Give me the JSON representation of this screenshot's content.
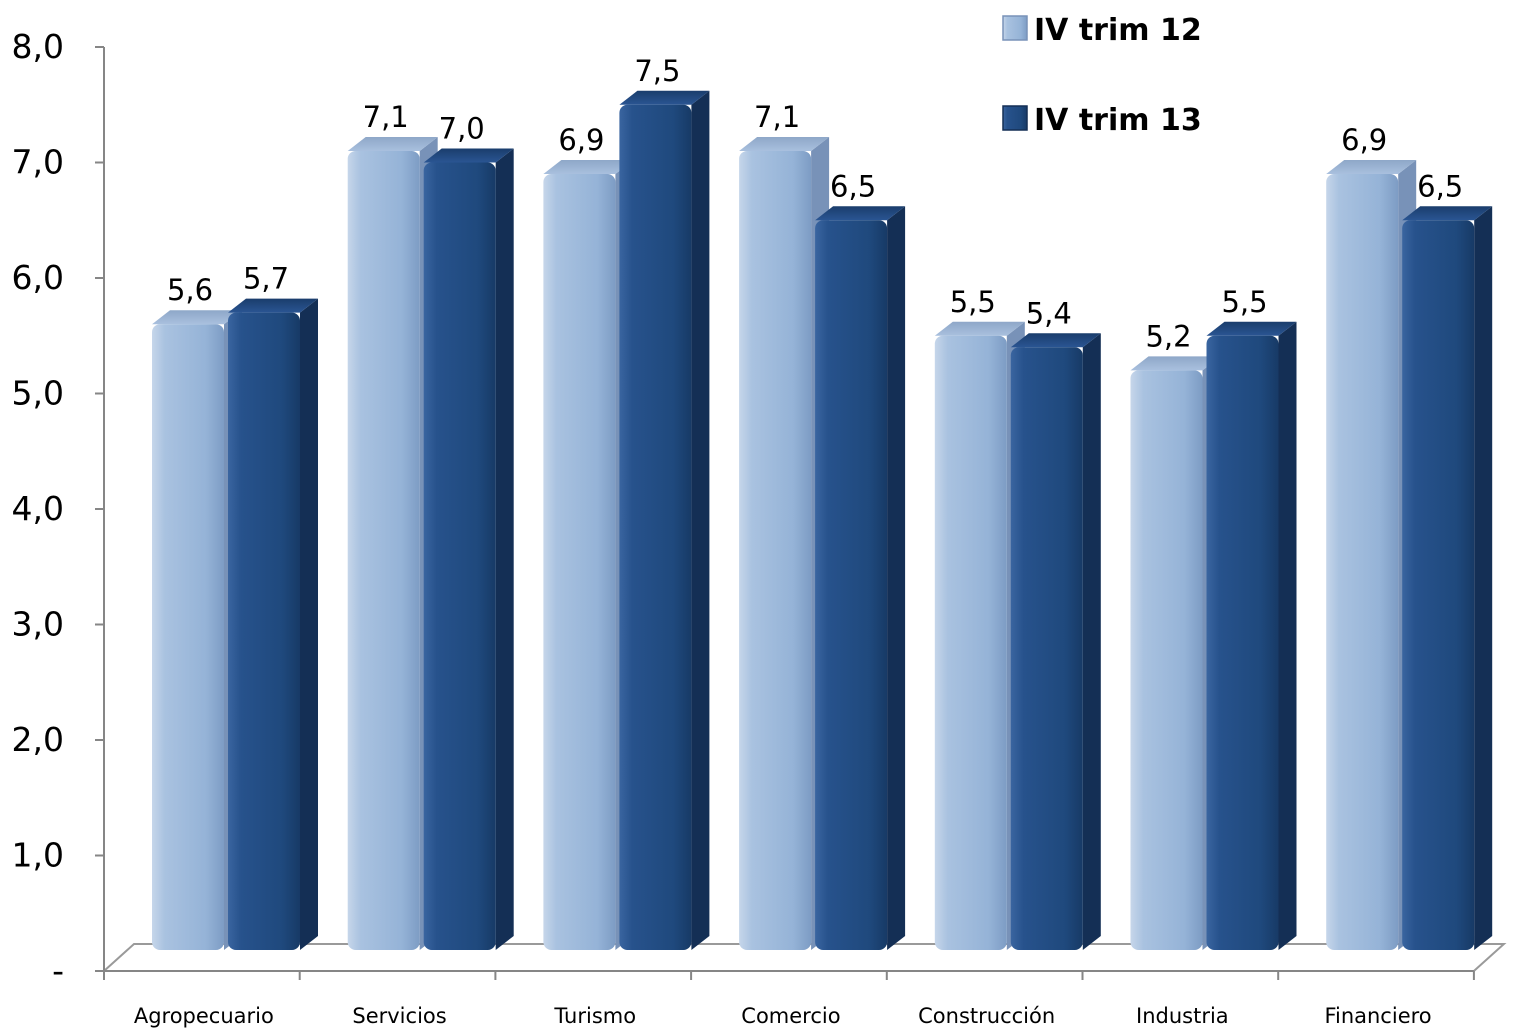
{
  "chart_data": {
    "type": "bar",
    "title": "",
    "xlabel": "",
    "ylabel": "",
    "ylim": [
      0,
      8
    ],
    "yticks": [
      "-",
      "1,0",
      "2,0",
      "3,0",
      "4,0",
      "5,0",
      "6,0",
      "7,0",
      "8,0"
    ],
    "categories": [
      "Agropecuario",
      "Servicios",
      "Turismo",
      "Comercio",
      "Construcción",
      "Industria",
      "Financiero"
    ],
    "series": [
      {
        "name": "IV trim 12",
        "values": [
          5.6,
          7.1,
          6.9,
          7.1,
          5.5,
          5.2,
          6.9
        ],
        "labels": [
          "5,6",
          "7,1",
          "6,9",
          "7,1",
          "5,5",
          "5,2",
          "6,9"
        ],
        "color": "#95b3d7"
      },
      {
        "name": "IV trim 13",
        "values": [
          5.7,
          7.0,
          7.5,
          6.5,
          5.4,
          5.5,
          6.5
        ],
        "labels": [
          "5,7",
          "7,0",
          "7,5",
          "6,5",
          "5,4",
          "5,5",
          "6,5"
        ],
        "color": "#1f497d"
      }
    ],
    "legend_position": "top-right",
    "grid": false
  }
}
